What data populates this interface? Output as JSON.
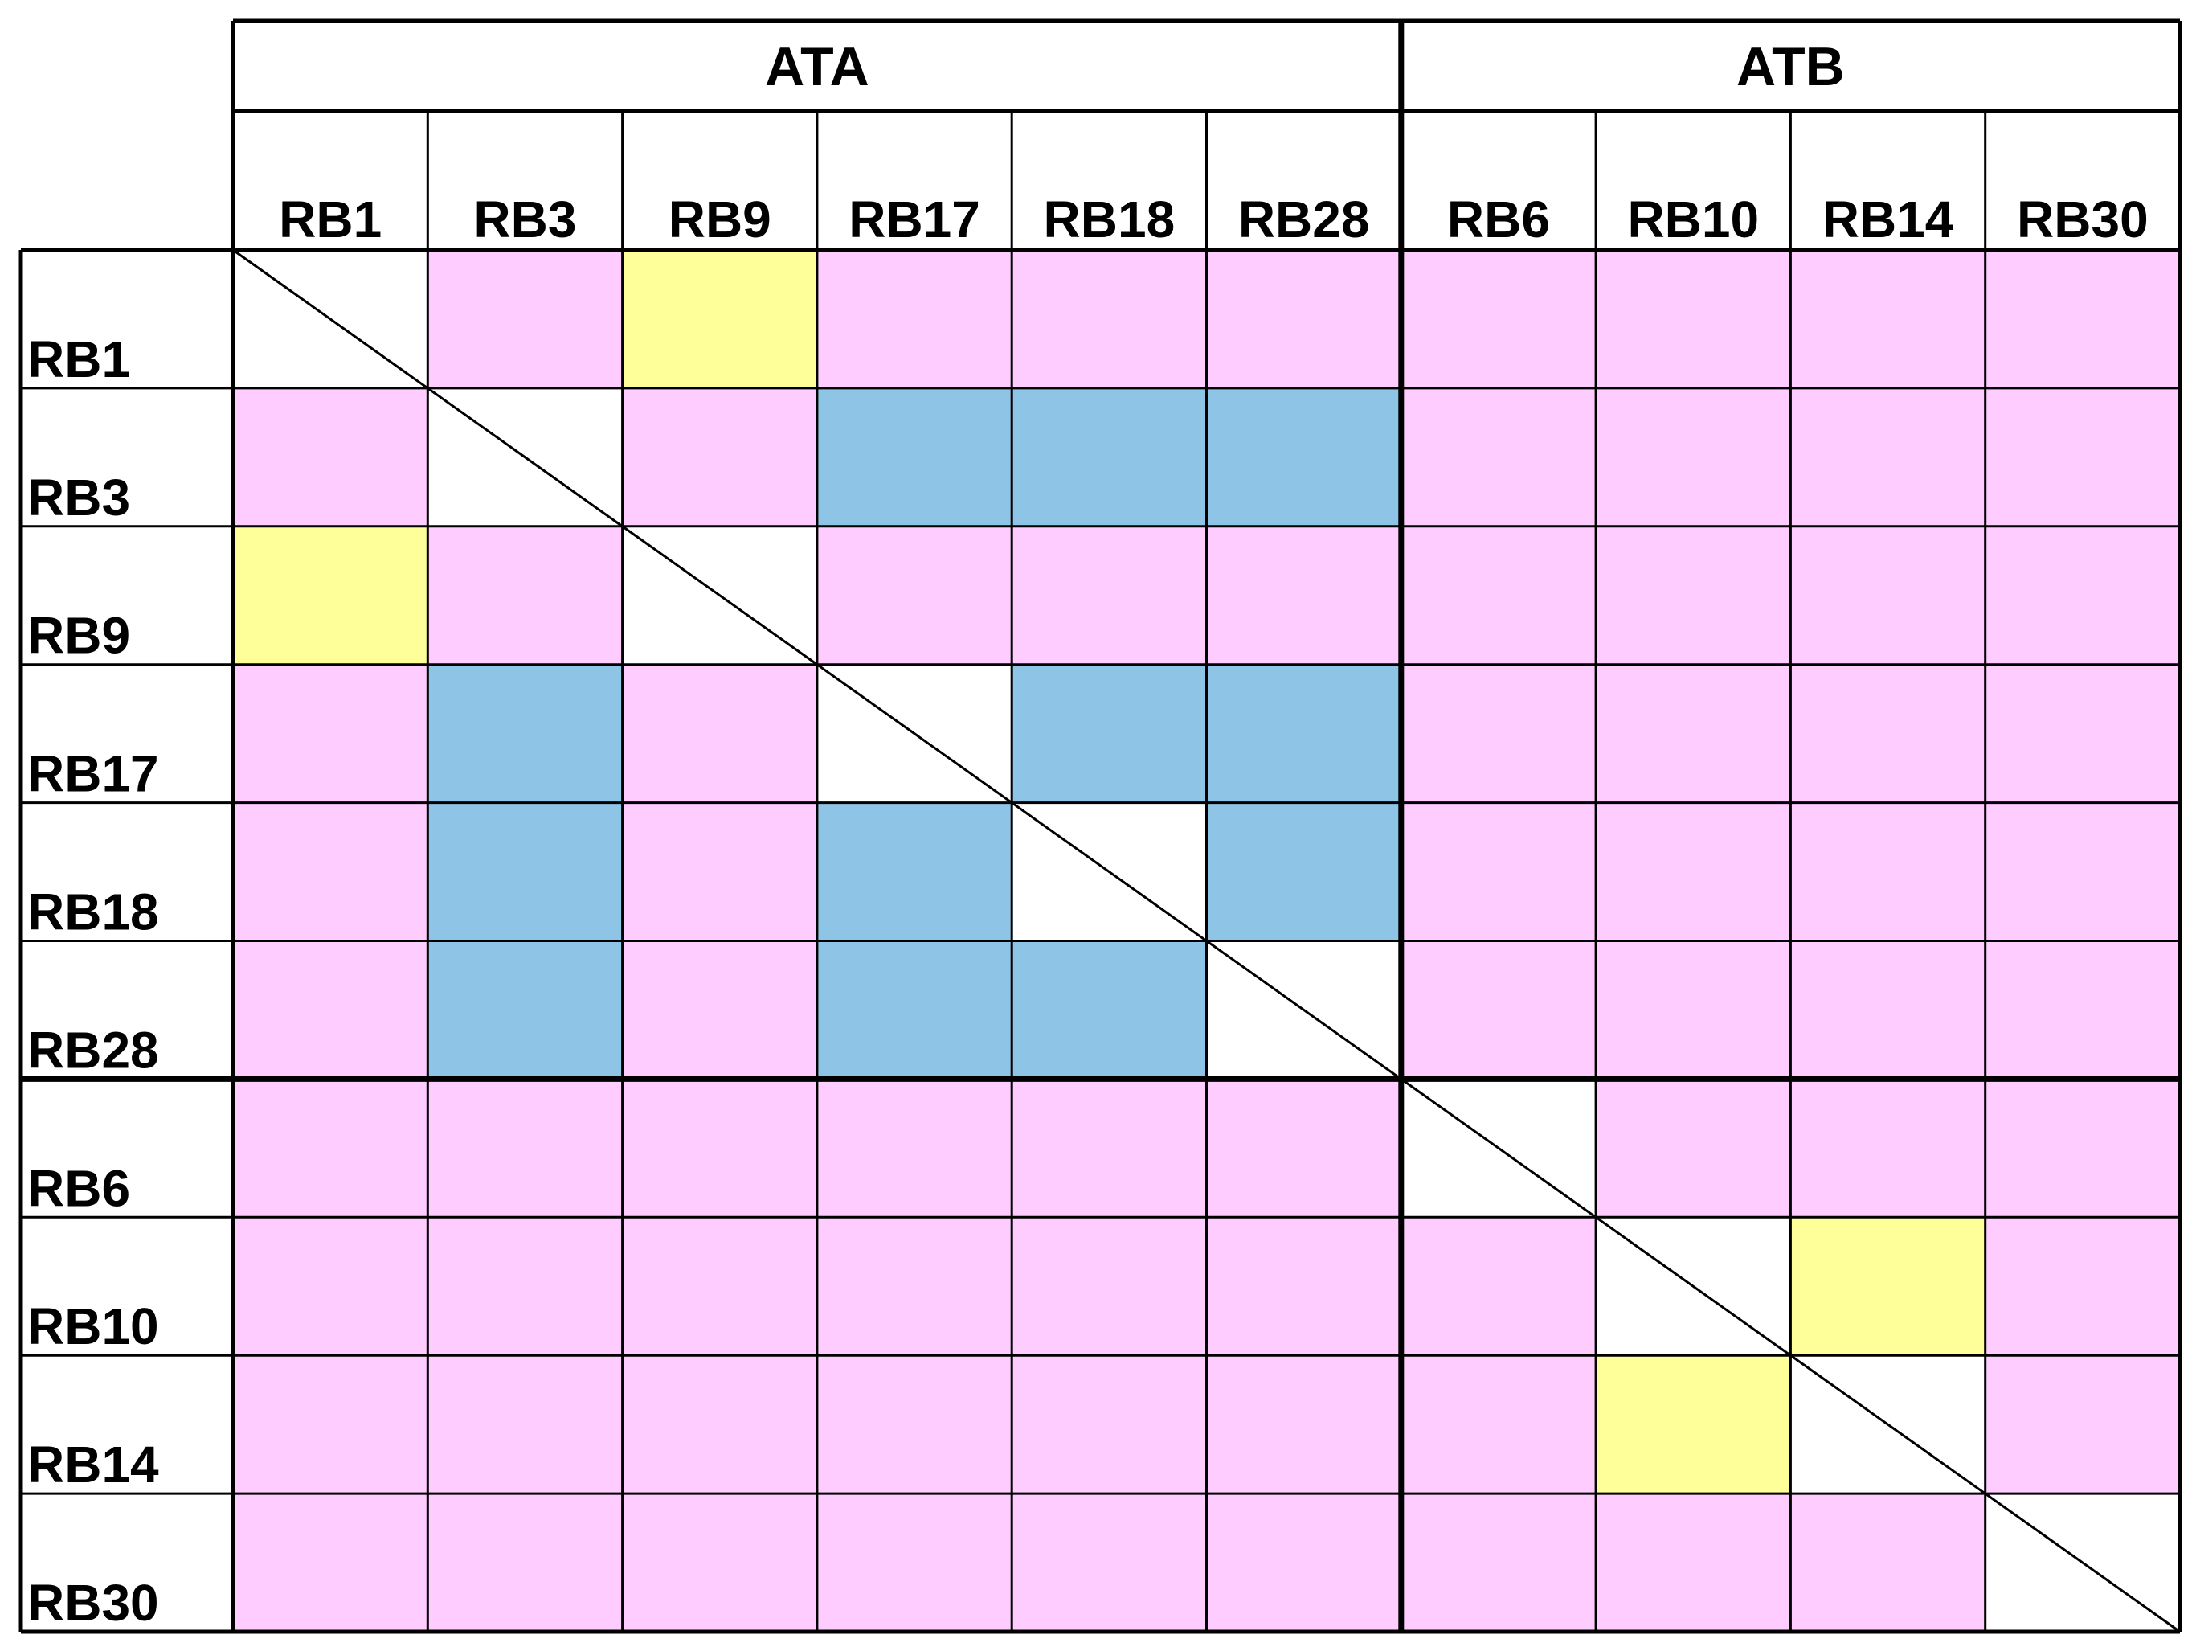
{
  "groups": [
    {
      "label": "ATA",
      "size": 6
    },
    {
      "label": "ATB",
      "size": 4
    }
  ],
  "labels": [
    "RB1",
    "RB3",
    "RB9",
    "RB17",
    "RB18",
    "RB28",
    "RB6",
    "RB10",
    "RB14",
    "RB30"
  ],
  "colors": {
    "pink": "#FFCCFF",
    "blue": "#8EC4E6",
    "yellow": "#FFFF99",
    "diagonal": "#FFFFFF"
  },
  "matrix": [
    [
      "D",
      "P",
      "Y",
      "P",
      "P",
      "P",
      "P",
      "P",
      "P",
      "P"
    ],
    [
      "P",
      "D",
      "P",
      "B",
      "B",
      "B",
      "P",
      "P",
      "P",
      "P"
    ],
    [
      "Y",
      "P",
      "D",
      "P",
      "P",
      "P",
      "P",
      "P",
      "P",
      "P"
    ],
    [
      "P",
      "B",
      "P",
      "D",
      "B",
      "B",
      "P",
      "P",
      "P",
      "P"
    ],
    [
      "P",
      "B",
      "P",
      "B",
      "D",
      "B",
      "P",
      "P",
      "P",
      "P"
    ],
    [
      "P",
      "B",
      "P",
      "B",
      "B",
      "D",
      "P",
      "P",
      "P",
      "P"
    ],
    [
      "P",
      "P",
      "P",
      "P",
      "P",
      "P",
      "D",
      "P",
      "P",
      "P"
    ],
    [
      "P",
      "P",
      "P",
      "P",
      "P",
      "P",
      "P",
      "D",
      "Y",
      "P"
    ],
    [
      "P",
      "P",
      "P",
      "P",
      "P",
      "P",
      "P",
      "Y",
      "D",
      "P"
    ],
    [
      "P",
      "P",
      "P",
      "P",
      "P",
      "P",
      "P",
      "P",
      "P",
      "D"
    ]
  ]
}
